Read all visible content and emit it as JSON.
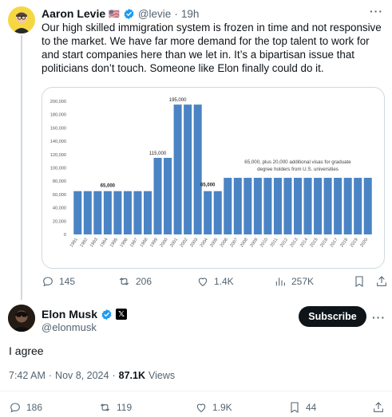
{
  "tweet1": {
    "author_name": "Aaron Levie",
    "flag": "🇺🇸",
    "handle": "@levie",
    "separator": "·",
    "time": "19h",
    "text": "Our high skilled immigration system is frozen in time and not responsive to the market. We have far more demand for the top talent to work for and start companies here than we let in. It’s a bipartisan issue that politicians don’t touch. Someone like Elon finally could do it.",
    "more_icon": "more-dots-icon",
    "actions": {
      "replies": "145",
      "reposts": "206",
      "likes": "1.4K",
      "views": "257K"
    }
  },
  "tweet2": {
    "author_name": "Elon Musk",
    "handle": "@elonmusk",
    "subscribe_label": "Subscribe",
    "text": "I agree",
    "time": "7:42 AM",
    "separator": "·",
    "date": "Nov 8, 2024",
    "view_count": "87.1K",
    "views_label": "Views",
    "actions": {
      "replies": "186",
      "reposts": "119",
      "likes": "1.9K",
      "bookmarks": "44"
    }
  },
  "colors": {
    "bar": "#4a84c4",
    "verified": "#1d9bf0",
    "subscribe_bg": "#0f1419"
  },
  "chart_data": {
    "type": "bar",
    "categories": [
      "1991",
      "1992",
      "1993",
      "1994",
      "1995",
      "1996",
      "1997",
      "1998",
      "1999",
      "2000",
      "2001",
      "2002",
      "2003",
      "2004",
      "2005",
      "2006",
      "2007",
      "2008",
      "2009",
      "2010",
      "2011",
      "2012",
      "2013",
      "2014",
      "2015",
      "2016",
      "2017",
      "2018",
      "2019",
      "2020"
    ],
    "values": [
      65000,
      65000,
      65000,
      65000,
      65000,
      65000,
      65000,
      65000,
      115000,
      115000,
      195000,
      195000,
      195000,
      65000,
      65000,
      85000,
      85000,
      85000,
      85000,
      85000,
      85000,
      85000,
      85000,
      85000,
      85000,
      85000,
      85000,
      85000,
      85000,
      85000
    ],
    "y_ticks": [
      "0",
      "20,000",
      "40,000",
      "60,000",
      "80,000",
      "100,000",
      "120,000",
      "140,000",
      "160,000",
      "180,000",
      "200,000"
    ],
    "ylim": [
      0,
      200000
    ],
    "annotations": [
      {
        "text": "65,000",
        "category": "1994"
      },
      {
        "text": "115,000",
        "category": "1999"
      },
      {
        "text": "195,000",
        "category": "2001"
      },
      {
        "text": "65,000",
        "category": "2004"
      },
      {
        "text": "65,000, plus 20,000 additional visas for graduate",
        "category": "2013"
      },
      {
        "text": "degree holders from U.S. universities",
        "category": "2013"
      }
    ]
  }
}
